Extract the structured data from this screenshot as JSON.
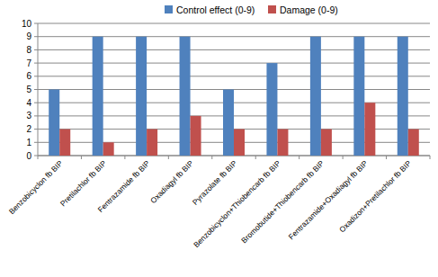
{
  "chart_data": {
    "type": "bar",
    "categories": [
      "Benzobicyclon fb BIP",
      "Pretilachlor fb BIP",
      "Fentrazamide fb BIP",
      "Oxadiagyl fb BIP",
      "Pyrazolate fb BIP",
      "Benzobicyclon+Thiobencarb fb BIP",
      "Bromobutide+Thiobencarb fb BIP",
      "Fentrazamide+Oxadiagyl fb BIP",
      "Oxadizon+Pretilachlor fb BIP"
    ],
    "series": [
      {
        "name": "Control effect (0-9)",
        "color": "#4f81bd",
        "values": [
          5,
          9,
          9,
          9,
          5,
          7,
          9,
          9,
          9
        ]
      },
      {
        "name": "Damage (0-9)",
        "color": "#c0504d",
        "values": [
          2,
          1,
          2,
          3,
          2,
          2,
          2,
          4,
          2
        ]
      }
    ],
    "ylim": [
      0,
      10
    ],
    "yticks": [
      0,
      1,
      2,
      3,
      4,
      5,
      6,
      7,
      8,
      9,
      10
    ],
    "grid": true,
    "legend": "top"
  }
}
